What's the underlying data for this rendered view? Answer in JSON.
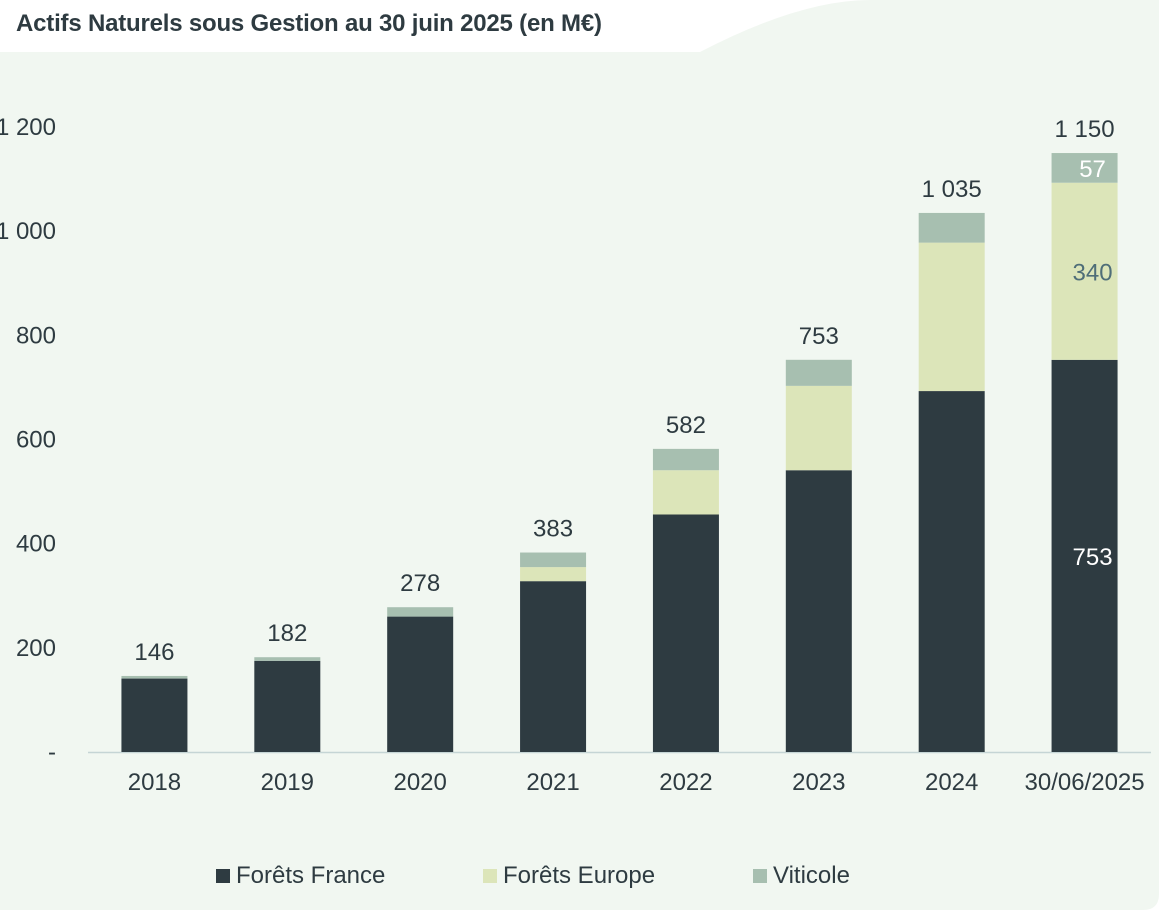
{
  "chart_data": {
    "type": "bar",
    "stacked": true,
    "title": "Actifs Naturels sous Gestion au 30 juin 2025 (en M€)",
    "xlabel": "",
    "ylabel": "",
    "ylim": [
      0,
      1200
    ],
    "yticks": [
      {
        "value": 0,
        "label": "-"
      },
      {
        "value": 200,
        "label": "200"
      },
      {
        "value": 400,
        "label": "400"
      },
      {
        "value": 600,
        "label": "600"
      },
      {
        "value": 800,
        "label": "800"
      },
      {
        "value": 1000,
        "label": "1 000"
      },
      {
        "value": 1200,
        "label": "1 200"
      }
    ],
    "categories": [
      "2018",
      "2019",
      "2020",
      "2021",
      "2022",
      "2023",
      "2024",
      "30/06/2025"
    ],
    "series": [
      {
        "name": "Forêts France",
        "color": "#2e3b41",
        "values": [
          141,
          175,
          260,
          328,
          456,
          541,
          693,
          753
        ]
      },
      {
        "name": "Forêts Europe",
        "color": "#dce5b9",
        "values": [
          0,
          0,
          0,
          27,
          85,
          162,
          285,
          340
        ]
      },
      {
        "name": "Viticole",
        "color": "#a7bfb0",
        "values": [
          5,
          7,
          18,
          28,
          41,
          50,
          57,
          57
        ]
      }
    ],
    "totals": [
      "146",
      "182",
      "278",
      "383",
      "582",
      "753",
      "1 035",
      "1 150"
    ],
    "segment_labels": [
      {
        "category": "30/06/2025",
        "series": "Forêts France",
        "text": "753",
        "color": "#ffffff"
      },
      {
        "category": "30/06/2025",
        "series": "Forêts Europe",
        "text": "340",
        "color": "#4f6e78"
      },
      {
        "category": "30/06/2025",
        "series": "Viticole",
        "text": "57",
        "color": "#ffffff"
      }
    ],
    "legend_position": "bottom"
  },
  "colors": {
    "background": "#f1f7f1",
    "text": "#2e3b41",
    "axis": "#c5d5d5"
  }
}
